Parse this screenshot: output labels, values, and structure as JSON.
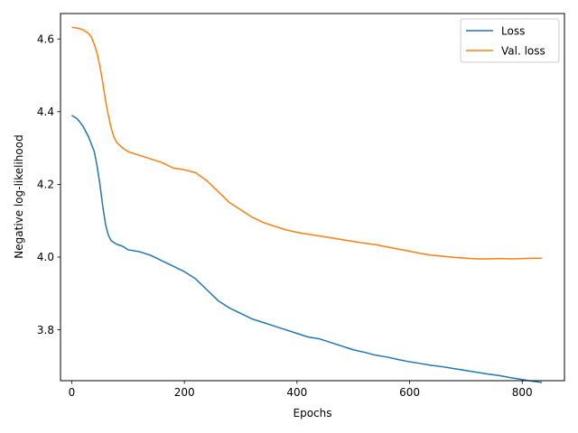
{
  "chart_data": {
    "type": "line",
    "title": "",
    "xlabel": "Epochs",
    "ylabel": "Negative log-likelihood",
    "xlim": [
      -20,
      875
    ],
    "ylim": [
      3.66,
      4.67
    ],
    "xticks": [
      0,
      200,
      400,
      600,
      800
    ],
    "yticks": [
      3.8,
      4.0,
      4.2,
      4.4,
      4.6
    ],
    "xtick_labels": [
      "0",
      "200",
      "400",
      "600",
      "800"
    ],
    "ytick_labels": [
      "3.8",
      "4.0",
      "4.2",
      "4.4",
      "4.6"
    ],
    "grid": false,
    "legend_position": "top-right",
    "series": [
      {
        "name": "Loss",
        "color": "#1f77b4",
        "x": [
          0,
          10,
          20,
          30,
          40,
          45,
          50,
          55,
          60,
          65,
          70,
          75,
          80,
          90,
          100,
          120,
          140,
          160,
          180,
          200,
          220,
          240,
          260,
          280,
          300,
          320,
          340,
          360,
          380,
          400,
          420,
          440,
          460,
          480,
          500,
          520,
          540,
          560,
          580,
          600,
          620,
          640,
          660,
          680,
          700,
          720,
          740,
          760,
          780,
          800,
          820,
          835
        ],
        "y": [
          4.39,
          4.38,
          4.36,
          4.33,
          4.29,
          4.25,
          4.2,
          4.14,
          4.09,
          4.06,
          4.045,
          4.04,
          4.035,
          4.03,
          4.02,
          4.015,
          4.005,
          3.99,
          3.975,
          3.96,
          3.94,
          3.91,
          3.88,
          3.86,
          3.845,
          3.83,
          3.82,
          3.81,
          3.8,
          3.79,
          3.78,
          3.775,
          3.765,
          3.755,
          3.745,
          3.738,
          3.73,
          3.725,
          3.718,
          3.712,
          3.707,
          3.702,
          3.698,
          3.693,
          3.688,
          3.683,
          3.678,
          3.674,
          3.668,
          3.663,
          3.658,
          3.655
        ]
      },
      {
        "name": "Val. loss",
        "color": "#ff7f0e",
        "x": [
          0,
          10,
          20,
          30,
          35,
          40,
          45,
          50,
          55,
          60,
          65,
          70,
          75,
          80,
          90,
          100,
          120,
          140,
          160,
          180,
          200,
          220,
          240,
          260,
          280,
          300,
          320,
          340,
          360,
          380,
          400,
          420,
          440,
          460,
          480,
          500,
          520,
          540,
          560,
          580,
          600,
          620,
          640,
          660,
          680,
          700,
          720,
          740,
          760,
          780,
          800,
          820,
          835
        ],
        "y": [
          4.632,
          4.63,
          4.625,
          4.615,
          4.605,
          4.585,
          4.56,
          4.525,
          4.48,
          4.43,
          4.39,
          4.355,
          4.33,
          4.315,
          4.3,
          4.29,
          4.28,
          4.27,
          4.26,
          4.245,
          4.24,
          4.232,
          4.21,
          4.18,
          4.15,
          4.13,
          4.11,
          4.095,
          4.085,
          4.075,
          4.068,
          4.063,
          4.058,
          4.053,
          4.048,
          4.043,
          4.038,
          4.034,
          4.028,
          4.022,
          4.016,
          4.01,
          4.005,
          4.002,
          3.999,
          3.997,
          3.995,
          3.995,
          3.996,
          3.995,
          3.996,
          3.997,
          3.997
        ]
      }
    ]
  }
}
